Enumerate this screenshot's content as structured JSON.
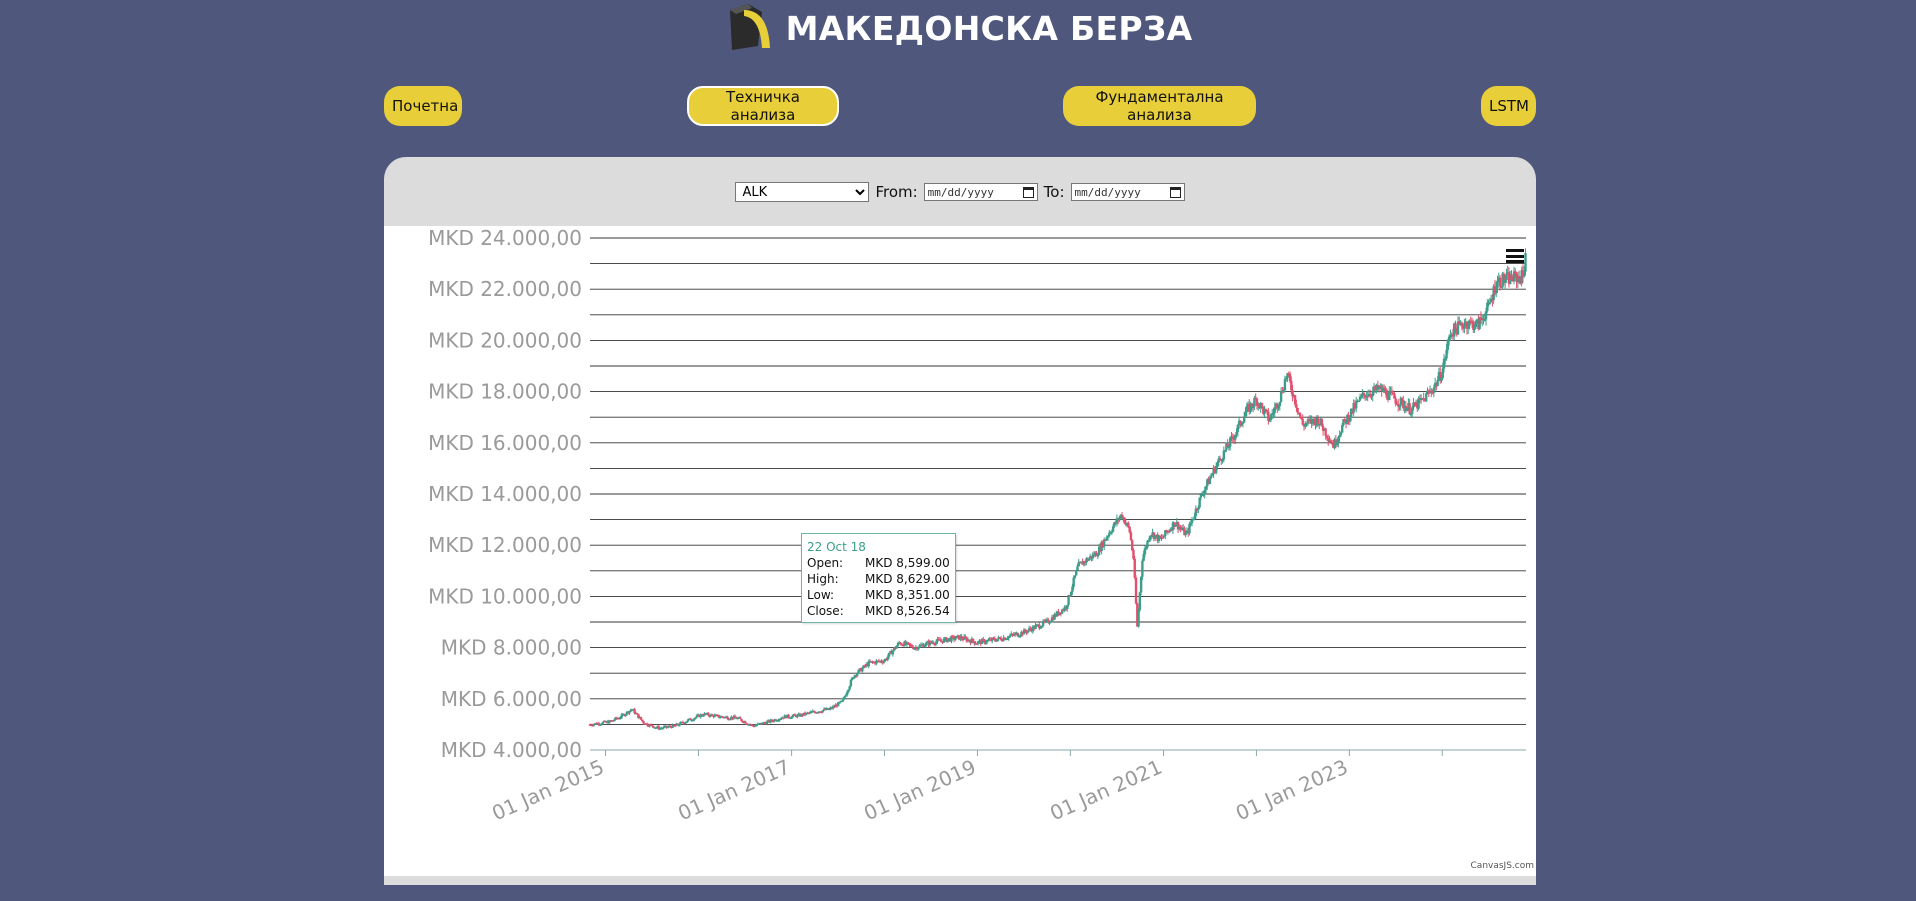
{
  "header": {
    "title": "МАКЕДОНСКА БЕРЗА"
  },
  "nav": {
    "home": "Почетна",
    "technical": "Техничка анализа",
    "fundamental": "Фундаментална анализа",
    "lstm": "LSTM"
  },
  "controls": {
    "symbol_selected": "ALK",
    "from_label": "From:",
    "to_label": "To:",
    "from_placeholder": "mm/dd/yyyy",
    "to_placeholder": "mm/dd/yyyy"
  },
  "icons": {
    "logo": "logo-icon",
    "menu": "hamburger-menu-icon",
    "calendar": "calendar-icon"
  },
  "colors": {
    "background": "#4f587c",
    "button": "#e8cf3a",
    "rising": "#3c9d8a",
    "falling": "#e2506e"
  },
  "chart_data": {
    "type": "candlestick",
    "title": "",
    "xlabel": "",
    "ylabel": "",
    "ylim": [
      4000,
      24000
    ],
    "y_ticks": [
      "MKD 4.000,00",
      "MKD 6.000,00",
      "MKD 8.000,00",
      "MKD 10.000,00",
      "MKD 12.000,00",
      "MKD 14.000,00",
      "MKD 16.000,00",
      "MKD 18.000,00",
      "MKD 20.000,00",
      "MKD 22.000,00",
      "MKD 24.000,00"
    ],
    "x_ticks": [
      "01 Jan 2015",
      "01 Jan 2017",
      "01 Jan 2019",
      "01 Jan 2021",
      "01 Jan 2023"
    ],
    "xlim": [
      "2014-11-01",
      "2024-11-25"
    ],
    "grid": true,
    "series": [
      {
        "close_path": [
          [
            "2014-11-01",
            5000
          ],
          [
            "2015-01-15",
            5100
          ],
          [
            "2015-03-01",
            5300
          ],
          [
            "2015-04-15",
            5600
          ],
          [
            "2015-06-01",
            5050
          ],
          [
            "2015-08-01",
            4850
          ],
          [
            "2015-10-01",
            4950
          ],
          [
            "2015-12-01",
            5200
          ],
          [
            "2016-01-20",
            5400
          ],
          [
            "2016-04-01",
            5300
          ],
          [
            "2016-06-01",
            5250
          ],
          [
            "2016-08-01",
            4950
          ],
          [
            "2016-10-01",
            5100
          ],
          [
            "2016-12-01",
            5300
          ],
          [
            "2017-02-01",
            5350
          ],
          [
            "2017-04-01",
            5500
          ],
          [
            "2017-06-01",
            5600
          ],
          [
            "2017-07-20",
            5900
          ],
          [
            "2017-09-01",
            6900
          ],
          [
            "2017-11-01",
            7400
          ],
          [
            "2018-01-01",
            7500
          ],
          [
            "2018-03-01",
            8200
          ],
          [
            "2018-05-01",
            8000
          ],
          [
            "2018-07-01",
            8200
          ],
          [
            "2018-10-22",
            8400
          ],
          [
            "2019-01-01",
            8200
          ],
          [
            "2019-04-01",
            8350
          ],
          [
            "2019-07-01",
            8600
          ],
          [
            "2019-10-01",
            9000
          ],
          [
            "2019-12-15",
            9600
          ],
          [
            "2020-02-01",
            11200
          ],
          [
            "2020-04-15",
            11700
          ],
          [
            "2020-06-01",
            12500
          ],
          [
            "2020-07-20",
            13200
          ],
          [
            "2020-08-20",
            12600
          ],
          [
            "2020-09-05",
            11500
          ],
          [
            "2020-09-20",
            8800
          ],
          [
            "2020-10-10",
            11500
          ],
          [
            "2020-11-10",
            12500
          ],
          [
            "2020-12-20",
            12200
          ],
          [
            "2021-02-15",
            12900
          ],
          [
            "2021-04-01",
            12400
          ],
          [
            "2021-06-01",
            14000
          ],
          [
            "2021-08-01",
            15200
          ],
          [
            "2021-10-01",
            16200
          ],
          [
            "2021-11-20",
            17200
          ],
          [
            "2022-01-01",
            17700
          ],
          [
            "2022-02-20",
            16900
          ],
          [
            "2022-04-01",
            17700
          ],
          [
            "2022-05-01",
            18700
          ],
          [
            "2022-06-01",
            17700
          ],
          [
            "2022-07-01",
            16700
          ],
          [
            "2022-09-01",
            16900
          ],
          [
            "2022-11-01",
            15900
          ],
          [
            "2022-12-01",
            16600
          ],
          [
            "2023-01-15",
            17300
          ],
          [
            "2023-03-01",
            17900
          ],
          [
            "2023-05-01",
            18100
          ],
          [
            "2023-07-01",
            17700
          ],
          [
            "2023-09-01",
            17300
          ],
          [
            "2023-10-20",
            17700
          ],
          [
            "2023-12-01",
            18200
          ],
          [
            "2024-01-01",
            18800
          ],
          [
            "2024-02-01",
            20300
          ],
          [
            "2024-04-01",
            20700
          ],
          [
            "2024-05-20",
            20600
          ],
          [
            "2024-07-01",
            21300
          ],
          [
            "2024-08-01",
            22300
          ],
          [
            "2024-09-15",
            22400
          ],
          [
            "2024-11-15",
            22500
          ],
          [
            "2024-11-25",
            23800
          ]
        ],
        "highlighted": {
          "date": "22 Oct 18",
          "open": 8599.0,
          "high": 8629.0,
          "low": 8351.0,
          "close": 8526.54
        }
      }
    ],
    "credit": "CanvasJS.com"
  },
  "tooltip": {
    "date": "22 Oct 18",
    "open_label": "Open:",
    "high_label": "High:",
    "low_label": "Low:",
    "close_label": "Close:",
    "open_value": "MKD 8,599.00",
    "high_value": "MKD 8,629.00",
    "low_value": "MKD 8,351.00",
    "close_value": "MKD 8,526.54"
  }
}
